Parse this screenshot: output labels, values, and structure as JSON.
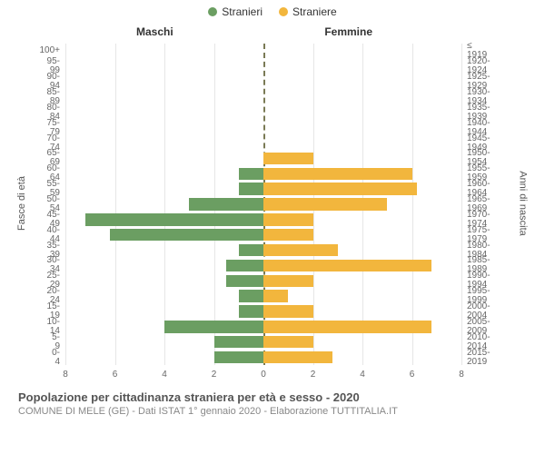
{
  "legend": {
    "male": {
      "label": "Stranieri",
      "color": "#6b9e62"
    },
    "female": {
      "label": "Straniere",
      "color": "#f2b63d"
    }
  },
  "columns": {
    "left": "Maschi",
    "right": "Femmine"
  },
  "axis_titles": {
    "left": "Fasce di età",
    "right": "Anni di nascita"
  },
  "footer": {
    "title": "Popolazione per cittadinanza straniera per età e sesso - 2020",
    "subtitle": "COMUNE DI MELE (GE) - Dati ISTAT 1° gennaio 2020 - Elaborazione TUTTITALIA.IT"
  },
  "chart": {
    "type": "population-pyramid",
    "x_max": 8,
    "x_ticks": [
      8,
      6,
      4,
      2,
      0,
      2,
      4,
      6,
      8
    ],
    "grid_color": "#e6e6e6",
    "center_color": "#7a7a55",
    "bar_gap_pct": 20,
    "rows": [
      {
        "age": "100+",
        "birth": "≤ 1919",
        "m": 0,
        "f": 0
      },
      {
        "age": "95-99",
        "birth": "1920-1924",
        "m": 0,
        "f": 0
      },
      {
        "age": "90-94",
        "birth": "1925-1929",
        "m": 0,
        "f": 0
      },
      {
        "age": "85-89",
        "birth": "1930-1934",
        "m": 0,
        "f": 0
      },
      {
        "age": "80-84",
        "birth": "1935-1939",
        "m": 0,
        "f": 0
      },
      {
        "age": "75-79",
        "birth": "1940-1944",
        "m": 0,
        "f": 0
      },
      {
        "age": "70-74",
        "birth": "1945-1949",
        "m": 0,
        "f": 0
      },
      {
        "age": "65-69",
        "birth": "1950-1954",
        "m": 0,
        "f": 2
      },
      {
        "age": "60-64",
        "birth": "1955-1959",
        "m": 1,
        "f": 6
      },
      {
        "age": "55-59",
        "birth": "1960-1964",
        "m": 1,
        "f": 6.2
      },
      {
        "age": "50-54",
        "birth": "1965-1969",
        "m": 3,
        "f": 5
      },
      {
        "age": "45-49",
        "birth": "1970-1974",
        "m": 7.2,
        "f": 2
      },
      {
        "age": "40-44",
        "birth": "1975-1979",
        "m": 6.2,
        "f": 2
      },
      {
        "age": "35-39",
        "birth": "1980-1984",
        "m": 1,
        "f": 3
      },
      {
        "age": "30-34",
        "birth": "1985-1989",
        "m": 1.5,
        "f": 6.8
      },
      {
        "age": "25-29",
        "birth": "1990-1994",
        "m": 1.5,
        "f": 2
      },
      {
        "age": "20-24",
        "birth": "1995-1999",
        "m": 1,
        "f": 1
      },
      {
        "age": "15-19",
        "birth": "2000-2004",
        "m": 1,
        "f": 2
      },
      {
        "age": "10-14",
        "birth": "2005-2009",
        "m": 4,
        "f": 6.8
      },
      {
        "age": "5-9",
        "birth": "2010-2014",
        "m": 2,
        "f": 2
      },
      {
        "age": "0-4",
        "birth": "2015-2019",
        "m": 2,
        "f": 2.8
      }
    ]
  }
}
